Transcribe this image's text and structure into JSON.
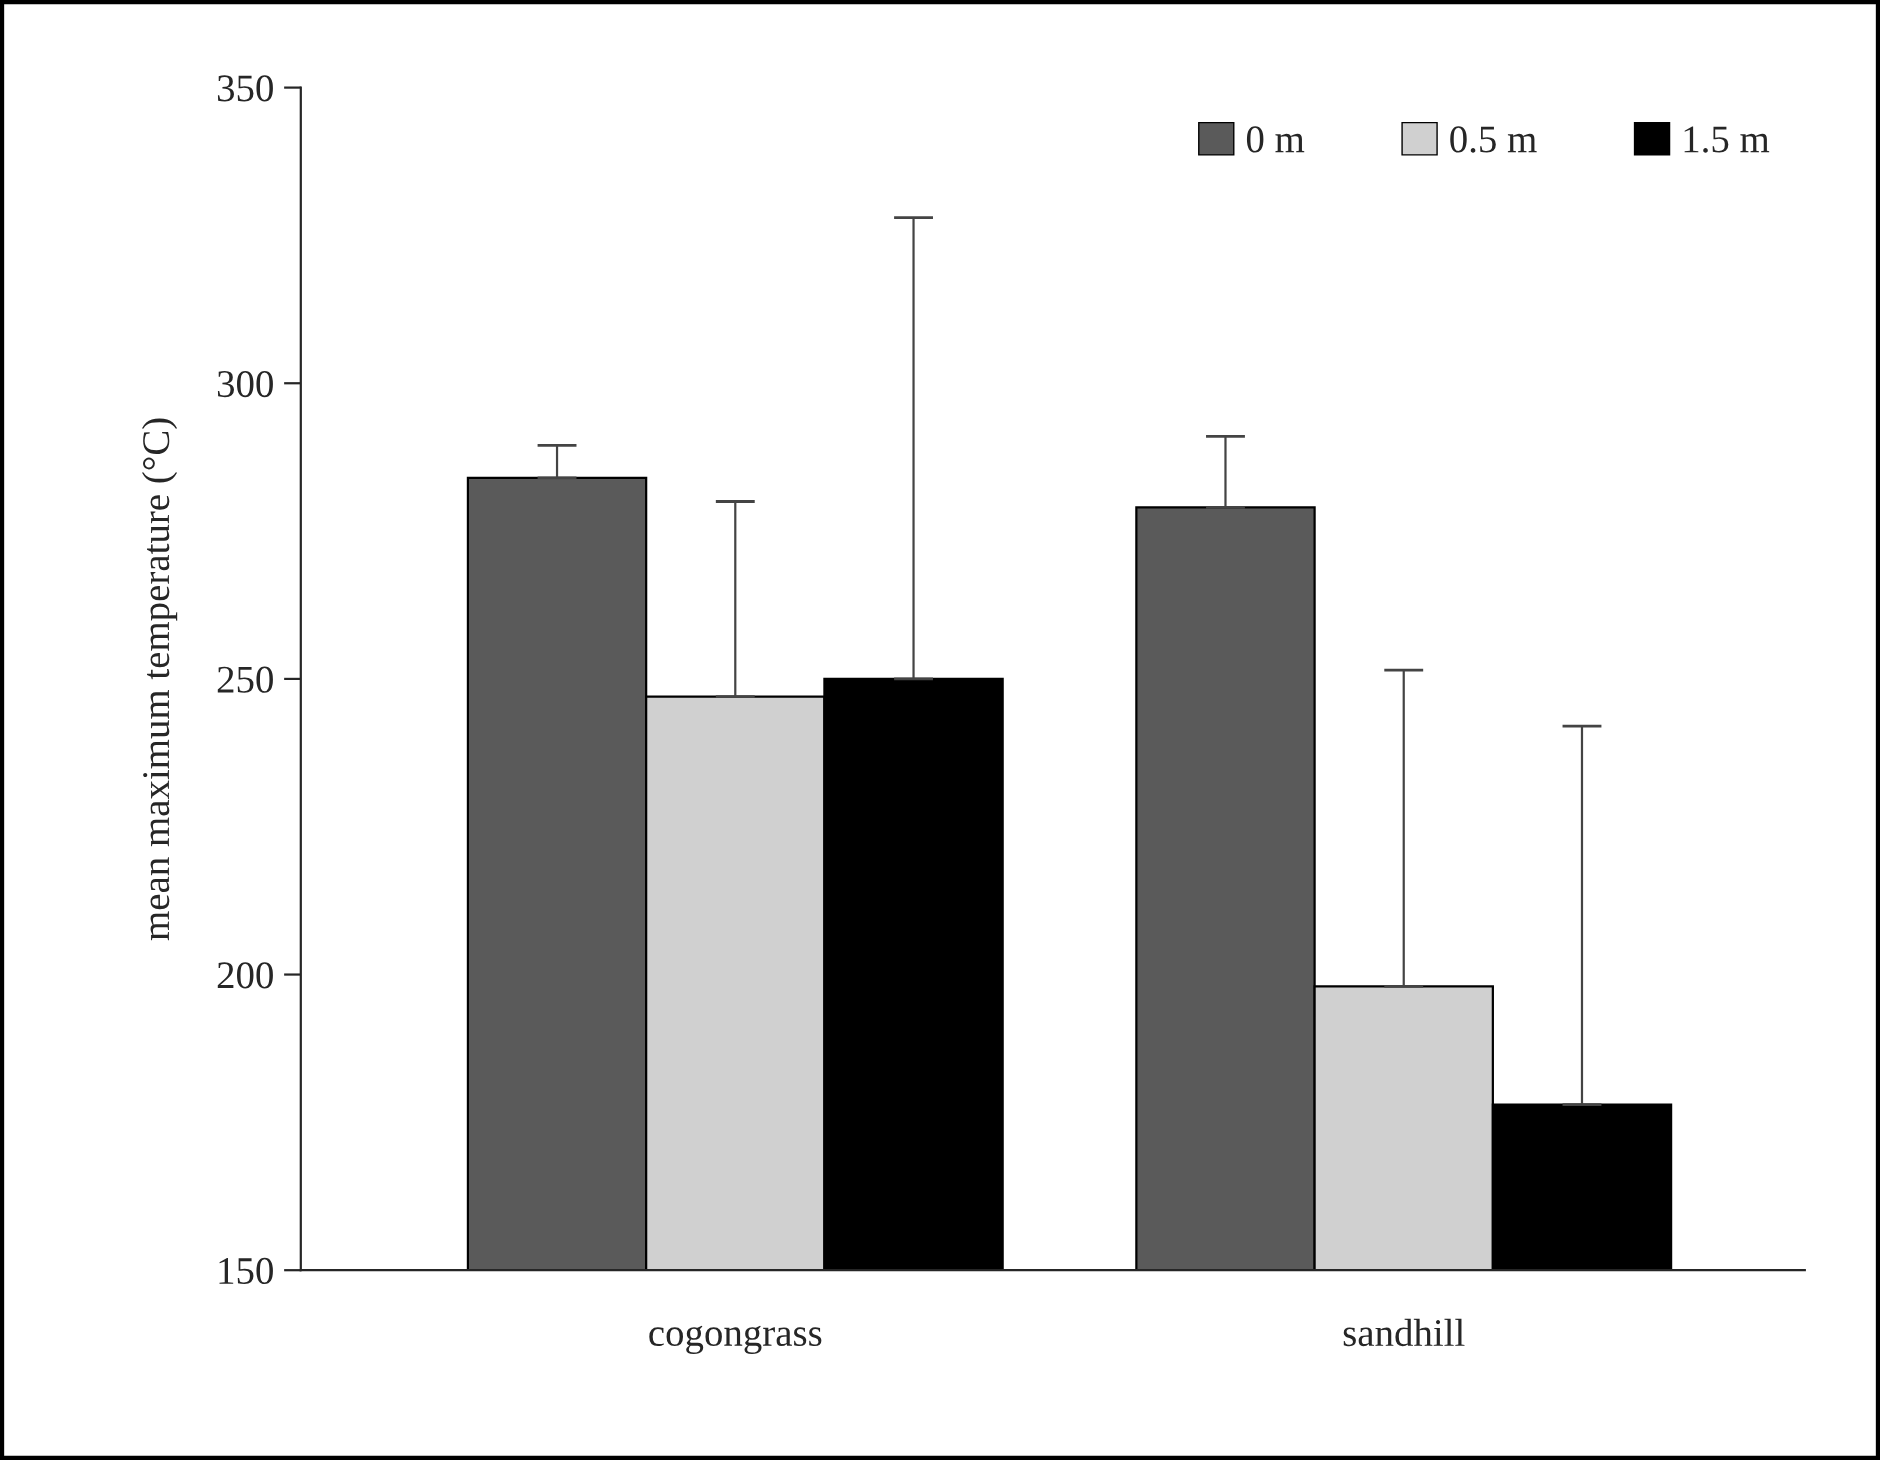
{
  "chart_data": {
    "type": "bar",
    "ylabel": "mean maximum temperature (°C)",
    "categories": [
      "cogongrass",
      "sandhill"
    ],
    "series": [
      {
        "name": "0 m",
        "color": "#5a5a5a",
        "values": [
          284,
          279
        ],
        "errors": [
          [
            284,
            289.5
          ],
          [
            279,
            291
          ]
        ]
      },
      {
        "name": "0.5 m",
        "color": "#d0d0d0",
        "values": [
          247,
          198
        ],
        "errors": [
          [
            247,
            280
          ],
          [
            198,
            251.5
          ]
        ]
      },
      {
        "name": "1.5 m",
        "color": "#000000",
        "values": [
          250,
          178
        ],
        "errors": [
          [
            250,
            328
          ],
          [
            178,
            242
          ]
        ]
      }
    ],
    "ylim": [
      150,
      350
    ],
    "yticks": [
      150,
      200,
      250,
      300,
      350
    ],
    "grid": false,
    "legend": "top right"
  }
}
